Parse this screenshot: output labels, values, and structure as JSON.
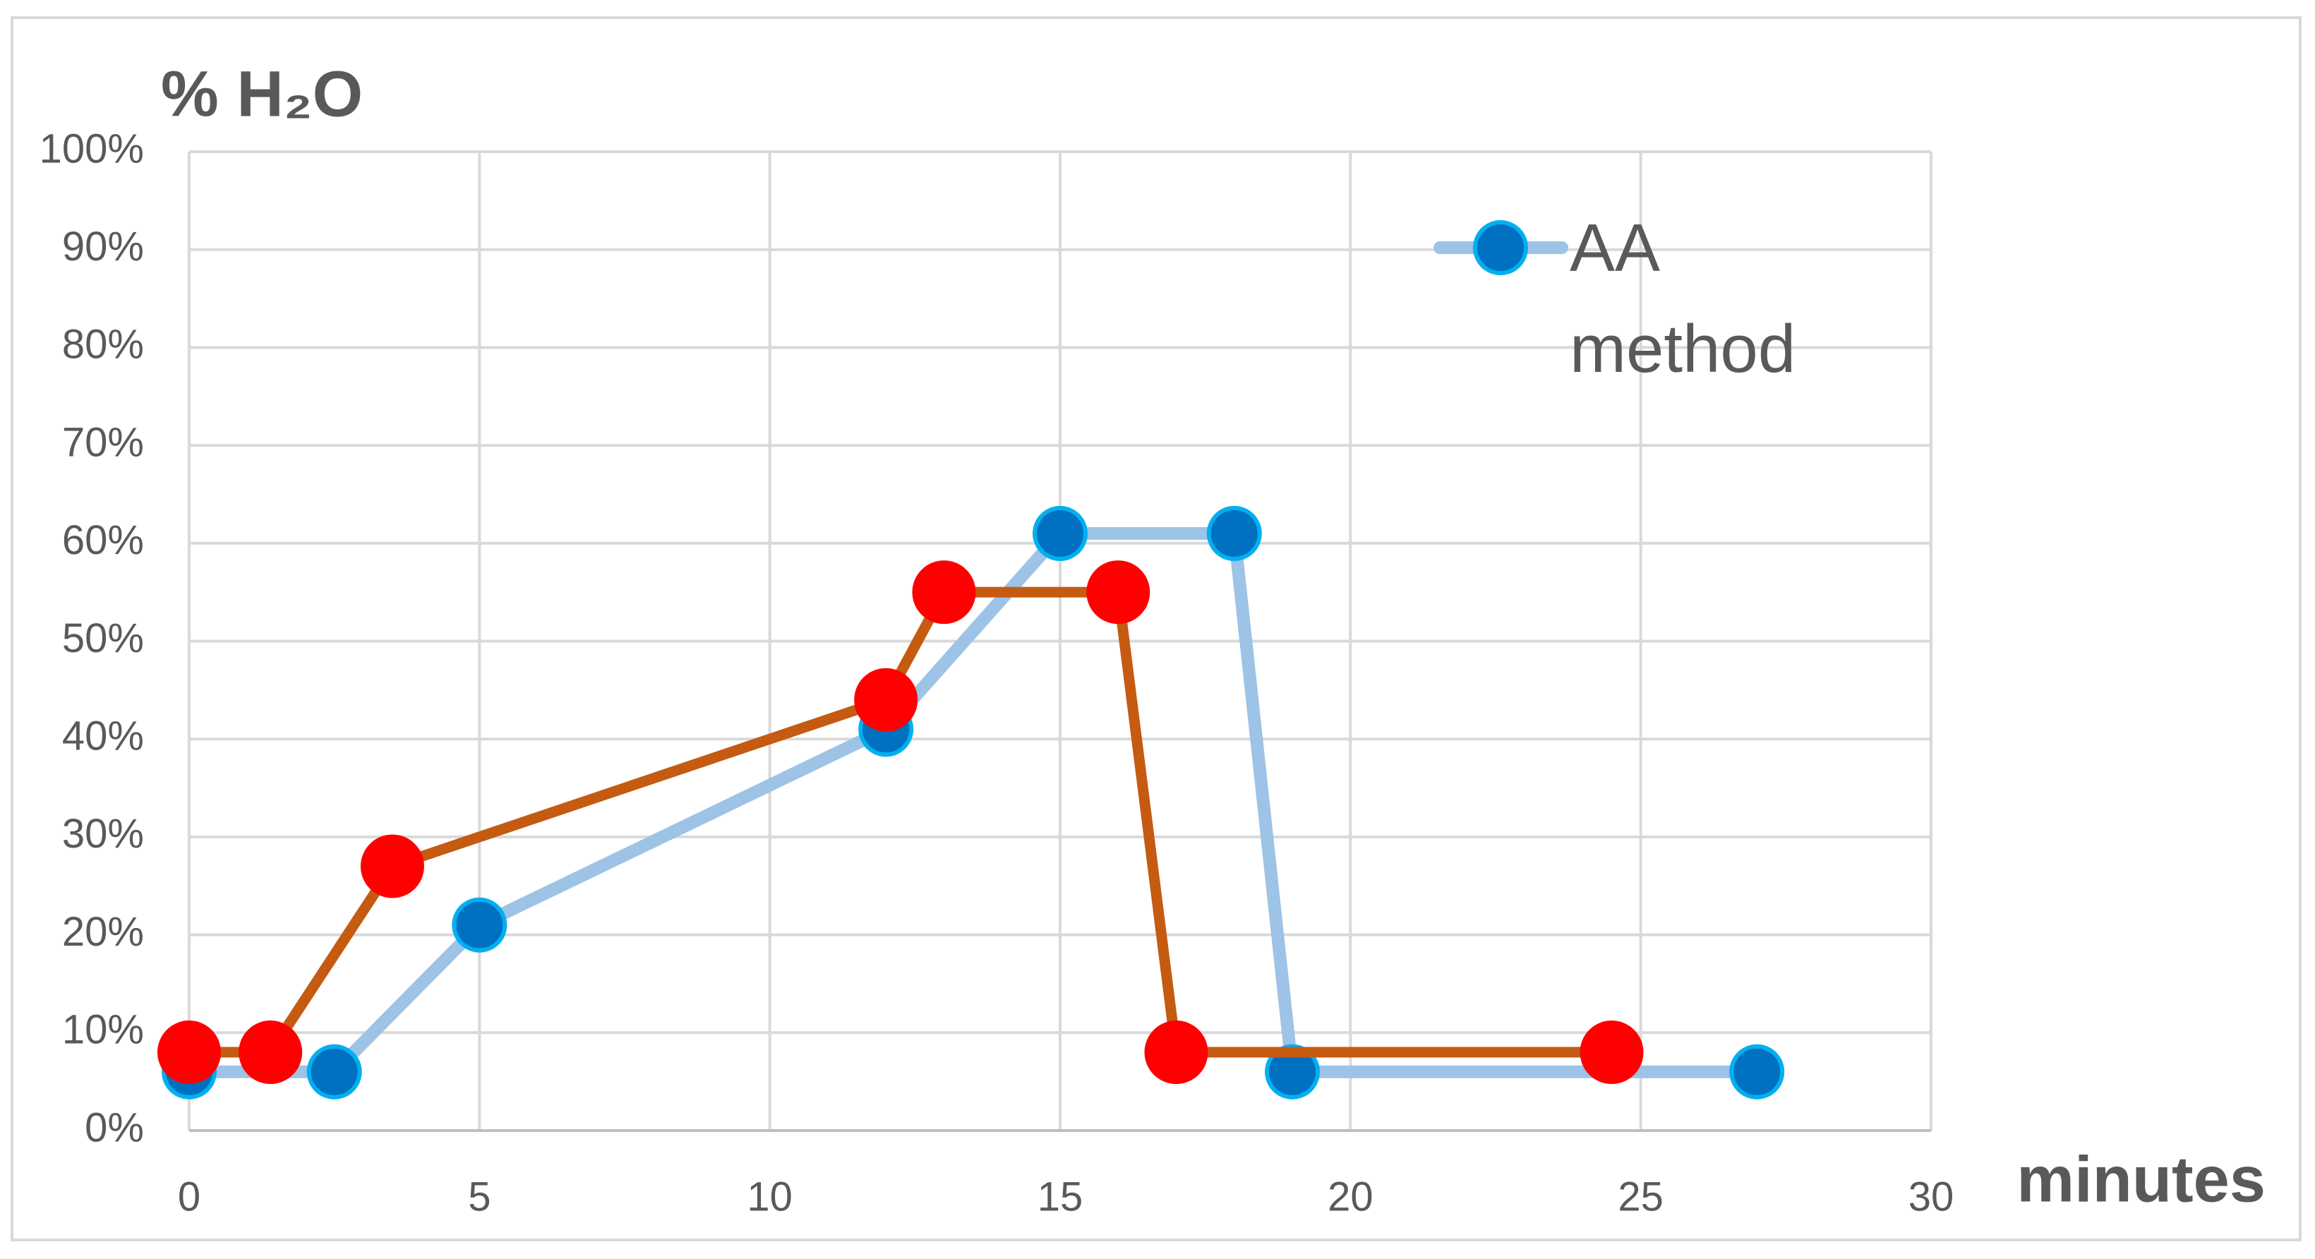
{
  "chart_data": {
    "type": "line",
    "y_label": "% H₂O",
    "x_label": "minutes",
    "xlim": [
      0,
      30
    ],
    "xticks": [
      0,
      5,
      10,
      15,
      20,
      25,
      30
    ],
    "ylim": [
      0,
      100
    ],
    "yticks": [
      {
        "value": 0,
        "label": "0%"
      },
      {
        "value": 10,
        "label": "10%"
      },
      {
        "value": 20,
        "label": "20%"
      },
      {
        "value": 30,
        "label": "30%"
      },
      {
        "value": 40,
        "label": "40%"
      },
      {
        "value": 50,
        "label": "50%"
      },
      {
        "value": 60,
        "label": "60%"
      },
      {
        "value": 70,
        "label": "70%"
      },
      {
        "value": 80,
        "label": "80%"
      },
      {
        "value": 90,
        "label": "90%"
      },
      {
        "value": 100,
        "label": "100%"
      }
    ],
    "grid": true,
    "legend": "upper right",
    "series": [
      {
        "name": "AA method",
        "color": "#9dc3e6",
        "marker_color": "#0070c0",
        "marker_edge_color": "#00b0f0",
        "x": [
          0,
          2.5,
          5,
          12,
          15,
          18,
          19,
          27
        ],
        "values": [
          6,
          6,
          21,
          41,
          61,
          61,
          6,
          6
        ]
      },
      {
        "color": "#c55a11",
        "marker_color": "#ff0000",
        "marker_edge_color": "#ff0000",
        "x": [
          0,
          1.4,
          3.5,
          12,
          13,
          16,
          17,
          24.5
        ],
        "values": [
          8,
          8,
          27,
          44,
          55,
          55,
          8,
          8
        ]
      }
    ]
  }
}
